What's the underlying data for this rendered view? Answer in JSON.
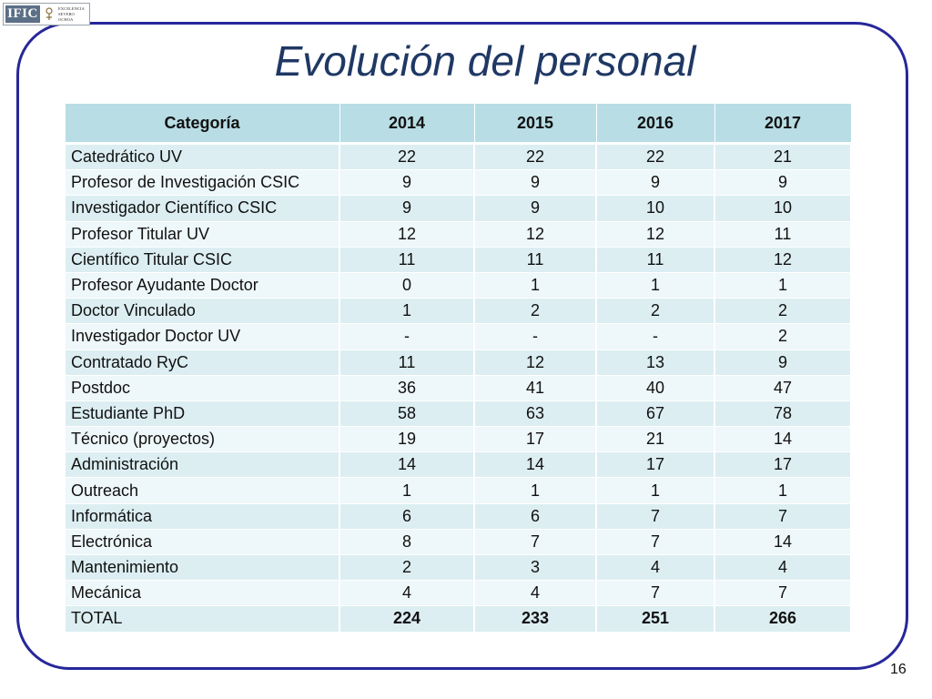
{
  "logo": {
    "abbr": "IFIC",
    "lines": [
      "EXCELENCIA",
      "SEVERO",
      "OCHOA"
    ]
  },
  "title": "Evolución del personal",
  "table": {
    "headers": [
      "Categoría",
      "2014",
      "2015",
      "2016",
      "2017"
    ],
    "rows": [
      [
        "Catedrático UV",
        "22",
        "22",
        "22",
        "21"
      ],
      [
        "Profesor de Investigación CSIC",
        "9",
        "9",
        "9",
        "9"
      ],
      [
        "Investigador Científico CSIC",
        "9",
        "9",
        "10",
        "10"
      ],
      [
        "Profesor Titular UV",
        "12",
        "12",
        "12",
        "11"
      ],
      [
        "Científico Titular CSIC",
        "11",
        "11",
        "11",
        "12"
      ],
      [
        "Profesor Ayudante Doctor",
        "0",
        "1",
        "1",
        "1"
      ],
      [
        "Doctor Vinculado",
        "1",
        "2",
        "2",
        "2"
      ],
      [
        "Investigador Doctor UV",
        "-",
        "-",
        "-",
        "2"
      ],
      [
        "Contratado RyC",
        "11",
        "12",
        "13",
        "9"
      ],
      [
        "Postdoc",
        "36",
        "41",
        "40",
        "47"
      ],
      [
        "Estudiante PhD",
        "58",
        "63",
        "67",
        "78"
      ],
      [
        "Técnico (proyectos)",
        "19",
        "17",
        "21",
        "14"
      ],
      [
        "Administración",
        "14",
        "14",
        "17",
        "17"
      ],
      [
        "Outreach",
        "1",
        "1",
        "1",
        "1"
      ],
      [
        "Informática",
        "6",
        "6",
        "7",
        "7"
      ],
      [
        "Electrónica",
        "8",
        "7",
        "7",
        "14"
      ],
      [
        "Mantenimiento",
        "2",
        "3",
        "4",
        "4"
      ],
      [
        "Mecánica",
        "4",
        "4",
        "7",
        "7"
      ],
      [
        "TOTAL",
        "224",
        "233",
        "251",
        "266"
      ]
    ]
  },
  "page_number": "16",
  "colors": {
    "frame": "#27279a",
    "title": "#1f3864",
    "header_bg": "#b8dde5",
    "row_bg_a": "#dceef2",
    "row_bg_b": "#eef7f9"
  }
}
